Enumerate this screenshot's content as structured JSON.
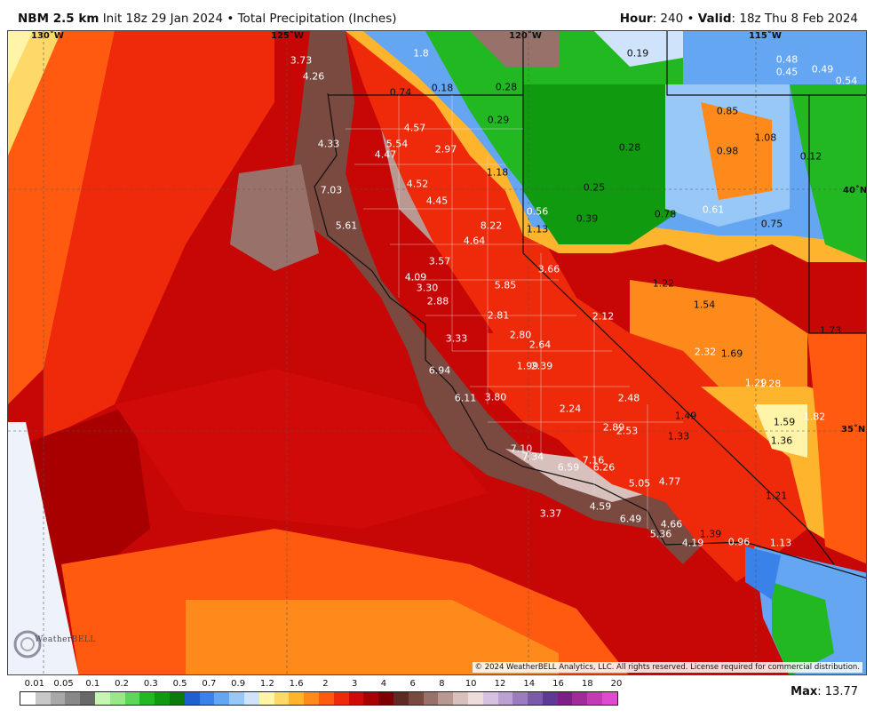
{
  "header": {
    "model": "NBM 2.5 km",
    "init": "Init 18z 29 Jan 2024",
    "bullet": "•",
    "product": "Total Precipitation (Inches)",
    "hour_label": "Hour",
    "hour_value": ": 240",
    "valid_label": "Valid",
    "valid_value": ": 18z Thu 8 Feb 2024"
  },
  "map": {
    "lat_lon_labels": [
      {
        "id": "lon130",
        "text": "130˚W"
      },
      {
        "id": "lon125",
        "text": "125˚W"
      },
      {
        "id": "lon120",
        "text": "120˚W"
      },
      {
        "id": "lon115",
        "text": "115˚W"
      },
      {
        "id": "lat40",
        "text": "40˚N"
      },
      {
        "id": "lat35",
        "text": "35˚N"
      }
    ],
    "values": [
      "3.73",
      "1.8",
      "4.26",
      "0.74",
      "0.18",
      "0.28",
      "0.19",
      "0.48",
      "0.45",
      "0.49",
      "0.54",
      "0.29",
      "0.85",
      "4.57",
      "5.54",
      "2.97",
      "4.33",
      "4.47",
      "1.08",
      "0.28",
      "0.98",
      "0.12",
      "1.18",
      "7.03",
      "4.52",
      "0.25",
      "4.45",
      "8.22",
      "0.56",
      "0.39",
      "0.78",
      "0.61",
      "0.75",
      "5.61",
      "1.13",
      "4.64",
      "3.57",
      "3.66",
      "4.09",
      "3.30",
      "5.85",
      "1.22",
      "2.88",
      "1.54",
      "2.81",
      "2.12",
      "3.33",
      "2.80",
      "2.64",
      "1.73",
      "2.32",
      "1.69",
      "6.94",
      "1.99",
      "2.39",
      "1.29",
      "1.28",
      "6.11",
      "3.80",
      "2.48",
      "2.24",
      "1.49",
      "1.59",
      "1.82",
      "2.89",
      "2.53",
      "1.33",
      "1.36",
      "7.10",
      "7.34",
      "7.16",
      "6.59",
      "6.26",
      "5.05",
      "4.77",
      "1.21",
      "3.37",
      "4.59",
      "6.49",
      "4.66",
      "5.36",
      "1.39",
      "4.19",
      "0.96",
      "1.13"
    ],
    "copyright": "© 2024 WeatherBELL Analytics, LLC. All rights reserved. License required for commercial distribution.",
    "logo_text": "WeatherBELL"
  },
  "legend": {
    "ticks": [
      "0.01",
      "0.05",
      "0.1",
      "0.2",
      "0.3",
      "0.5",
      "0.7",
      "0.9",
      "1.2",
      "1.6",
      "2",
      "3",
      "4",
      "6",
      "8",
      "10",
      "12",
      "14",
      "16",
      "18",
      "20"
    ],
    "colors": [
      "#ffffff",
      "#c8c8c8",
      "#a8a8a8",
      "#888888",
      "#686868",
      "#c7f5b4",
      "#98e88a",
      "#5ed65a",
      "#22b822",
      "#109a10",
      "#0d7a0d",
      "#1f5fd0",
      "#3a82ea",
      "#64a6f2",
      "#98c8f8",
      "#cfe4fb",
      "#fff4a8",
      "#ffd86a",
      "#ffb42e",
      "#ff8a1c",
      "#ff5a10",
      "#ee2a0a",
      "#cf0a08",
      "#a80000",
      "#7c0000",
      "#5e2a24",
      "#7a4a40",
      "#98726a",
      "#b89890",
      "#d8c0bc",
      "#eedcdc",
      "#d6c2e0",
      "#bca2d2",
      "#9c7cc0",
      "#7c5aaa",
      "#5e3a94",
      "#7c2088",
      "#a02c9a",
      "#c23ab4",
      "#e04ad0"
    ],
    "max_label": "Max",
    "max_value": ": 13.77"
  }
}
